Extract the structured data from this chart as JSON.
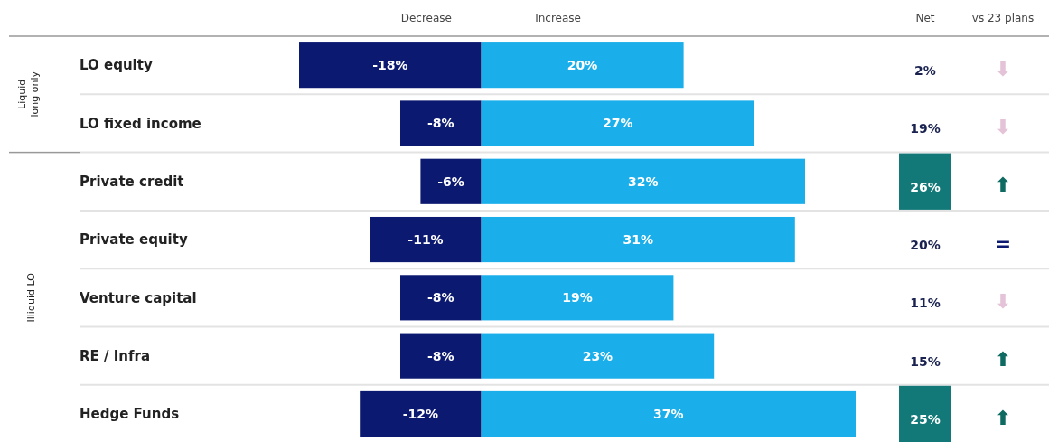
{
  "chart_data": [
    {
      "type": "bar",
      "orientation": "horizontal",
      "stacked": true,
      "categories": [
        "LO equity",
        "LO fixed income",
        "Private credit",
        "Private equity",
        "Venture capital",
        "RE / Infra",
        "Hedge Funds"
      ],
      "series": [
        {
          "name": "Decrease",
          "color": "#0c1970",
          "values": [
            -18,
            -8,
            -6,
            -11,
            -8,
            -8,
            -12
          ],
          "value_labels": [
            "-18%",
            "-8%",
            "-6%",
            "-11%",
            "-8%",
            "-8%",
            "-12%"
          ]
        },
        {
          "name": "Increase",
          "color": "#1aaeea",
          "values": [
            20,
            27,
            32,
            31,
            19,
            23,
            37
          ],
          "value_labels": [
            "20%",
            "27%",
            "32%",
            "31%",
            "19%",
            "23%",
            "37%"
          ]
        }
      ],
      "tick_labels": "y",
      "legend": "top",
      "annotations": [
        "Liquid long only",
        "Illiquid LO"
      ]
    },
    {
      "type": "other",
      "title": "Net",
      "annotations": [
        "2%",
        "19%",
        "26%",
        "20%",
        "11%",
        "15%",
        "25%"
      ],
      "colors": [
        null,
        null,
        "#137878",
        null,
        null,
        null,
        "#137878"
      ]
    },
    {
      "type": "other",
      "title": "vs 23 plans",
      "annotations": [
        "⬇",
        "⬇",
        "⬆",
        "=",
        "⬇",
        "⬆",
        "⬆"
      ],
      "colors": [
        "#e4c3d8",
        "#e4c3d8",
        "#0f6b62",
        "#0c1970",
        "#e4c3d8",
        "#0f6b62",
        "#0f6b62"
      ]
    }
  ]
}
